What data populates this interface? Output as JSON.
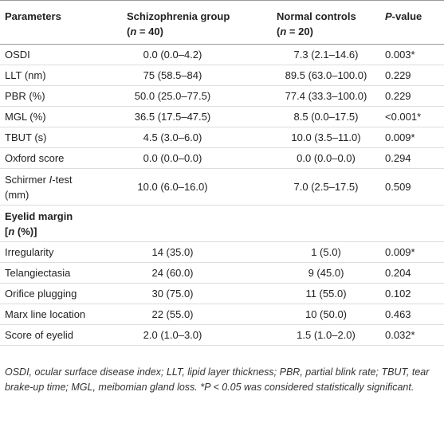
{
  "table": {
    "header": [
      [
        {
          "text": "Parameters"
        }
      ],
      [
        {
          "text": "Schizophrenia group"
        },
        {
          "br": true
        },
        {
          "text": "("
        },
        {
          "text": "n",
          "italic": true
        },
        {
          "text": " = 40)"
        }
      ],
      [
        {
          "text": "Normal controls"
        },
        {
          "br": true
        },
        {
          "text": "("
        },
        {
          "text": "n",
          "italic": true
        },
        {
          "text": " = 20)"
        }
      ],
      [
        {
          "text": "P",
          "italic": true
        },
        {
          "text": "-value"
        }
      ]
    ],
    "rows": [
      [
        "OSDI",
        "0.0 (0.0–4.2)",
        "7.3 (2.1–14.6)",
        "0.003*"
      ],
      [
        "LLT (nm)",
        "75 (58.5–84)",
        "89.5 (63.0–100.0)",
        "0.229"
      ],
      [
        "PBR (%)",
        "50.0 (25.0–77.5)",
        "77.4 (33.3–100.0)",
        "0.229"
      ],
      [
        "MGL (%)",
        "36.5 (17.5–47.5)",
        "8.5 (0.0–17.5)",
        "<0.001*"
      ],
      [
        "TBUT (s)",
        "4.5 (3.0–6.0)",
        "10.0 (3.5–11.0)",
        "0.009*"
      ],
      [
        "Oxford score",
        "0.0 (0.0–0.0)",
        "0.0 (0.0–0.0)",
        "0.294"
      ],
      [
        [
          {
            "text": "Schirmer "
          },
          {
            "text": "I",
            "italic": true
          },
          {
            "text": "-test"
          },
          {
            "br": true
          },
          {
            "text": "(mm)"
          }
        ],
        "10.0 (6.0–16.0)",
        "7.0 (2.5–17.5)",
        "0.509"
      ],
      [
        [
          {
            "text": "Eyelid margin"
          },
          {
            "br": true
          },
          {
            "text": "["
          },
          {
            "text": "n",
            "italic": true
          },
          {
            "text": " (%)]"
          }
        ]
      ],
      [
        "Irregularity",
        "14 (35.0)",
        "1 (5.0)",
        "0.009*"
      ],
      [
        "Telangiectasia",
        "24 (60.0)",
        "9 (45.0)",
        "0.204"
      ],
      [
        "Orifice plugging",
        "30 (75.0)",
        "11 (55.0)",
        "0.102"
      ],
      [
        "Marx line location",
        "22 (55.0)",
        "10 (50.0)",
        "0.463"
      ],
      [
        "Score of eyelid",
        "2.0 (1.0–3.0)",
        "1.5 (1.0–2.0)",
        "0.032*"
      ]
    ],
    "footnote": "OSDI, ocular surface disease index; LLT, lipid layer thickness; PBR, partial blink rate; TBUT, tear brake-up time; MGL, meibomian gland loss. *P < 0.05 was considered statistically significant."
  }
}
